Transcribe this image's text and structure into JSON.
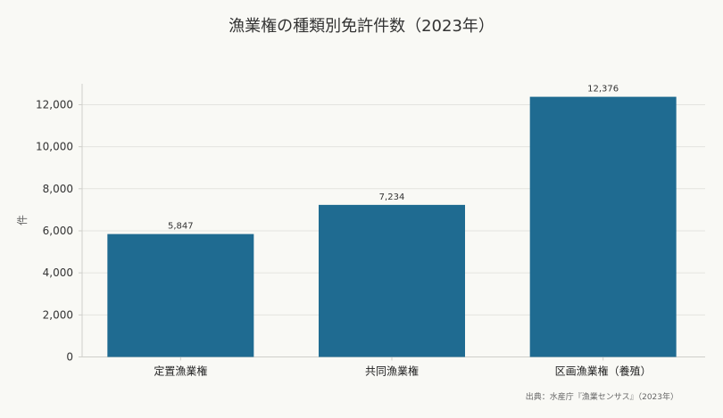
{
  "chart_data": {
    "type": "bar",
    "title": "漁業権の種類別免許件数（2023年）",
    "xlabel": "",
    "ylabel": "件",
    "categories": [
      "定置漁業権",
      "共同漁業権",
      "区画漁業権（養殖）"
    ],
    "values": [
      5847,
      7234,
      12376
    ],
    "value_labels": [
      "5,847",
      "7,234",
      "12,376"
    ],
    "yticks": [
      0,
      2000,
      4000,
      6000,
      8000,
      10000,
      12000
    ],
    "ytick_labels": [
      "0",
      "2,000",
      "4,000",
      "6,000",
      "8,000",
      "10,000",
      "12,000"
    ],
    "ylim": [
      0,
      12995
    ],
    "grid": true,
    "legend": "none",
    "source": "出典：水産庁『漁業センサス』（2023年）",
    "colors": {
      "bar": "#1f6b91",
      "grid": "#e4e4df",
      "axis": "#cfcfca",
      "background": "#f9f9f5"
    }
  }
}
